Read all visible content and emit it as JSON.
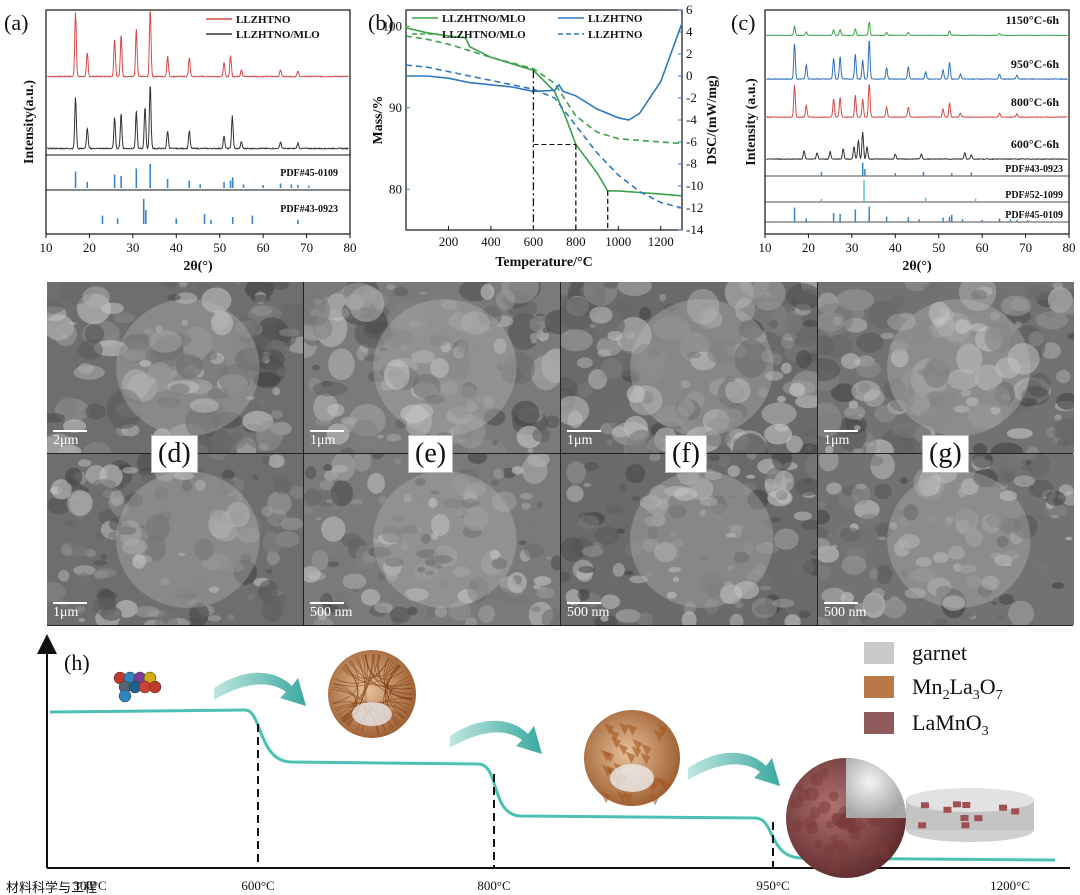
{
  "panel_labels": {
    "a": "(a)",
    "b": "(b)",
    "c": "(c)",
    "d": "(d)",
    "e": "(e)",
    "f": "(f)",
    "g": "(g)",
    "h": "(h)"
  },
  "chart_data": [
    {
      "id": "a",
      "type": "line",
      "xlabel": "2θ(°)",
      "ylabel": "Intensity(a.u.)",
      "xlim": [
        10,
        80
      ],
      "xticks": [
        10,
        20,
        30,
        40,
        50,
        60,
        70,
        80
      ],
      "series": [
        {
          "name": "LLZHTNO",
          "color": "#d94a4a",
          "peaks": [
            [
              16.8,
              0.95
            ],
            [
              19.5,
              0.35
            ],
            [
              25.8,
              0.55
            ],
            [
              27.3,
              0.62
            ],
            [
              30.8,
              0.7
            ],
            [
              34.0,
              1.0
            ],
            [
              38.0,
              0.3
            ],
            [
              43.0,
              0.28
            ],
            [
              51.0,
              0.2
            ],
            [
              52.5,
              0.3
            ],
            [
              55.0,
              0.1
            ],
            [
              64.0,
              0.1
            ],
            [
              68.0,
              0.08
            ]
          ]
        },
        {
          "name": "LLZHTNO/MLO",
          "color": "#333333",
          "peaks": [
            [
              16.8,
              0.75
            ],
            [
              19.5,
              0.3
            ],
            [
              25.8,
              0.45
            ],
            [
              27.3,
              0.52
            ],
            [
              30.8,
              0.55
            ],
            [
              32.8,
              0.62
            ],
            [
              34.0,
              0.95
            ],
            [
              38.0,
              0.26
            ],
            [
              43.0,
              0.26
            ],
            [
              51.0,
              0.18
            ],
            [
              52.9,
              0.48
            ],
            [
              55.0,
              0.1
            ],
            [
              64.0,
              0.1
            ],
            [
              68.0,
              0.08
            ]
          ]
        }
      ],
      "references": [
        {
          "name": "PDF#45-0109",
          "color": "#3a85c6",
          "sticks": [
            [
              16.8,
              0.55
            ],
            [
              19.5,
              0.2
            ],
            [
              25.8,
              0.45
            ],
            [
              27.3,
              0.4
            ],
            [
              30.8,
              0.65
            ],
            [
              34.0,
              0.8
            ],
            [
              38.0,
              0.3
            ],
            [
              43.0,
              0.25
            ],
            [
              45.5,
              0.12
            ],
            [
              51.0,
              0.2
            ],
            [
              52.5,
              0.25
            ],
            [
              53.0,
              0.35
            ],
            [
              55.5,
              0.12
            ],
            [
              60.0,
              0.1
            ],
            [
              64.0,
              0.15
            ],
            [
              66.5,
              0.12
            ],
            [
              68.0,
              0.1
            ],
            [
              70.5,
              0.08
            ]
          ]
        },
        {
          "name": "PDF#43-0923",
          "color": "#3a85c6",
          "sticks": [
            [
              23.0,
              0.3
            ],
            [
              26.5,
              0.2
            ],
            [
              32.5,
              0.9
            ],
            [
              33.0,
              0.5
            ],
            [
              40.0,
              0.2
            ],
            [
              46.5,
              0.35
            ],
            [
              48.0,
              0.15
            ],
            [
              53.0,
              0.25
            ],
            [
              57.5,
              0.3
            ],
            [
              68.0,
              0.15
            ]
          ]
        }
      ]
    },
    {
      "id": "b",
      "type": "line",
      "xlabel": "Temperature/°C",
      "ylabel": "Mass/%",
      "y2label": "DSC/(mW/mg)",
      "xlim": [
        0,
        1300
      ],
      "xticks": [
        200,
        400,
        600,
        800,
        1000,
        1200
      ],
      "ylim": [
        75,
        102
      ],
      "yticks": [
        80,
        90,
        100
      ],
      "y2lim": [
        -14,
        6
      ],
      "y2ticks": [
        -14,
        -12,
        -10,
        -8,
        -6,
        -4,
        -2,
        0,
        2,
        4,
        6
      ],
      "legend": [
        "LLZHTNO/MLO",
        "LLZHTNO/MLO",
        "LLZHTNO",
        "LLZHTNO"
      ],
      "series": [
        {
          "name": "LLZHTNO/MLO",
          "kind": "mass",
          "style": "solid",
          "color": "#3aa34a",
          "x": [
            0,
            100,
            200,
            280,
            300,
            400,
            500,
            600,
            700,
            750,
            800,
            900,
            950,
            1000,
            1100,
            1200,
            1300
          ],
          "y": [
            99.8,
            99.2,
            98.8,
            98.6,
            97.5,
            96.2,
            95.4,
            94.6,
            92.0,
            89.0,
            85.5,
            82.0,
            79.8,
            79.8,
            79.6,
            79.4,
            79.2
          ]
        },
        {
          "name": "LLZHTNO",
          "kind": "mass",
          "style": "dashed",
          "color": "#3aa34a",
          "x": [
            0,
            100,
            200,
            300,
            400,
            500,
            600,
            700,
            800,
            900,
            1000,
            1100,
            1200,
            1300
          ],
          "y": [
            98.8,
            98.4,
            97.8,
            97.0,
            96.2,
            95.5,
            94.8,
            93.0,
            89.0,
            87.0,
            86.2,
            86.0,
            85.8,
            85.6
          ]
        },
        {
          "name": "LLZHTNO/MLO",
          "kind": "dsc",
          "style": "solid",
          "color": "#2f78c4",
          "x": [
            0,
            100,
            200,
            300,
            400,
            500,
            600,
            700,
            720,
            740,
            800,
            900,
            1000,
            1050,
            1100,
            1200,
            1300
          ],
          "y": [
            0.0,
            0.0,
            -0.2,
            -0.6,
            -0.8,
            -1.0,
            -1.4,
            -1.3,
            -0.8,
            -1.4,
            -1.8,
            -3.0,
            -3.8,
            -4.0,
            -3.4,
            -0.5,
            4.8
          ]
        },
        {
          "name": "LLZHTNO",
          "kind": "dsc",
          "style": "dashed",
          "color": "#2f78c4",
          "x": [
            0,
            100,
            200,
            300,
            400,
            500,
            600,
            700,
            800,
            900,
            1000,
            1100,
            1200,
            1300
          ],
          "y": [
            1.0,
            0.8,
            0.4,
            0.0,
            -0.4,
            -0.8,
            -1.2,
            -2.0,
            -4.5,
            -7.0,
            -9.0,
            -10.5,
            -11.5,
            -12.0
          ]
        }
      ],
      "markers": [
        {
          "x": 600,
          "style": "dashdot"
        },
        {
          "x": 800,
          "style": "dashed"
        },
        {
          "x": 950,
          "style": "dashed"
        }
      ]
    },
    {
      "id": "c",
      "type": "line",
      "xlabel": "2θ(°)",
      "ylabel": "Intensity (a.u.)",
      "xlim": [
        10,
        80
      ],
      "xticks": [
        10,
        20,
        30,
        40,
        50,
        60,
        70,
        80
      ],
      "series": [
        {
          "name": "1150°C-6h",
          "color": "#3aa34a",
          "peaks": [
            [
              16.8,
              0.3
            ],
            [
              19.5,
              0.12
            ],
            [
              25.8,
              0.18
            ],
            [
              27.3,
              0.2
            ],
            [
              30.8,
              0.22
            ],
            [
              34.0,
              0.45
            ],
            [
              38.0,
              0.1
            ],
            [
              43.0,
              0.1
            ],
            [
              52.5,
              0.15
            ],
            [
              64.0,
              0.06
            ]
          ]
        },
        {
          "name": "950°C-6h",
          "color": "#2f6fbf",
          "peaks": [
            [
              16.8,
              0.85
            ],
            [
              19.5,
              0.35
            ],
            [
              25.8,
              0.5
            ],
            [
              27.3,
              0.55
            ],
            [
              30.8,
              0.6
            ],
            [
              32.5,
              0.45
            ],
            [
              34.0,
              0.95
            ],
            [
              38.0,
              0.28
            ],
            [
              43.0,
              0.3
            ],
            [
              47.0,
              0.18
            ],
            [
              51.0,
              0.22
            ],
            [
              52.5,
              0.4
            ],
            [
              55.0,
              0.12
            ],
            [
              64.0,
              0.12
            ],
            [
              68.0,
              0.1
            ]
          ]
        },
        {
          "name": "800°C-6h",
          "color": "#d94a4a",
          "peaks": [
            [
              16.8,
              0.8
            ],
            [
              19.5,
              0.3
            ],
            [
              25.8,
              0.45
            ],
            [
              27.3,
              0.5
            ],
            [
              30.8,
              0.55
            ],
            [
              32.5,
              0.45
            ],
            [
              34.0,
              0.85
            ],
            [
              38.0,
              0.25
            ],
            [
              43.0,
              0.25
            ],
            [
              51.0,
              0.2
            ],
            [
              52.5,
              0.35
            ],
            [
              55.0,
              0.1
            ],
            [
              64.0,
              0.1
            ],
            [
              68.0,
              0.08
            ]
          ]
        },
        {
          "name": "600°C-6h",
          "color": "#333333",
          "peaks": [
            [
              19.0,
              0.2
            ],
            [
              22.0,
              0.15
            ],
            [
              25.0,
              0.18
            ],
            [
              28.0,
              0.25
            ],
            [
              30.5,
              0.3
            ],
            [
              31.5,
              0.45
            ],
            [
              32.5,
              0.65
            ],
            [
              33.5,
              0.3
            ],
            [
              40.0,
              0.12
            ],
            [
              46.0,
              0.12
            ],
            [
              56.0,
              0.15
            ],
            [
              57.5,
              0.1
            ]
          ]
        }
      ],
      "references": [
        {
          "name": "PDF#43-0923",
          "color": "#3a85c6",
          "sticks": [
            [
              23.0,
              0.3
            ],
            [
              32.5,
              0.95
            ],
            [
              33.0,
              0.5
            ],
            [
              40.0,
              0.2
            ],
            [
              46.5,
              0.3
            ],
            [
              53.0,
              0.2
            ],
            [
              57.5,
              0.25
            ]
          ]
        },
        {
          "name": "PDF#52-1099",
          "color": "#5bc7c2",
          "sticks": [
            [
              32.8,
              1.0
            ],
            [
              23.0,
              0.15
            ],
            [
              47.0,
              0.2
            ],
            [
              58.5,
              0.15
            ]
          ]
        },
        {
          "name": "PDF#45-0109",
          "color": "#3a85c6",
          "sticks": [
            [
              16.8,
              0.8
            ],
            [
              19.5,
              0.2
            ],
            [
              25.8,
              0.5
            ],
            [
              27.3,
              0.45
            ],
            [
              30.8,
              0.7
            ],
            [
              34.0,
              0.85
            ],
            [
              38.0,
              0.3
            ],
            [
              43.0,
              0.28
            ],
            [
              45.5,
              0.15
            ],
            [
              51.0,
              0.25
            ],
            [
              52.5,
              0.3
            ],
            [
              53.0,
              0.4
            ],
            [
              55.5,
              0.15
            ],
            [
              60.0,
              0.12
            ],
            [
              64.0,
              0.2
            ],
            [
              66.5,
              0.15
            ],
            [
              68.0,
              0.12
            ],
            [
              70.5,
              0.1
            ]
          ]
        }
      ]
    },
    {
      "id": "h",
      "type": "line",
      "xticks": [
        "300°C",
        "600°C",
        "800°C",
        "950°C",
        "1200°C"
      ],
      "stages": [
        300,
        600,
        800,
        950,
        1200
      ],
      "legend": [
        {
          "label": "garnet",
          "color": "#c9c9c9"
        },
        {
          "label_parts": [
            "Mn",
            "2",
            "La",
            "3",
            "O",
            "7"
          ],
          "color": "#b97848"
        },
        {
          "label_parts": [
            "LaMnO",
            "3"
          ],
          "color": "#8e5a5a"
        }
      ]
    }
  ],
  "sem_panels": [
    {
      "id": "d",
      "top_scale": "2μm",
      "bottom_scale": "1μm",
      "tone": "#6e6e6e"
    },
    {
      "id": "e",
      "top_scale": "1μm",
      "bottom_scale": "500 nm",
      "tone": "#7a7a7a"
    },
    {
      "id": "f",
      "top_scale": "1μm",
      "bottom_scale": "500 nm",
      "tone": "#6a6a6a"
    },
    {
      "id": "g",
      "top_scale": "1μm",
      "bottom_scale": "500 nm",
      "tone": "#727272"
    }
  ],
  "watermark": "材料科学与工程"
}
